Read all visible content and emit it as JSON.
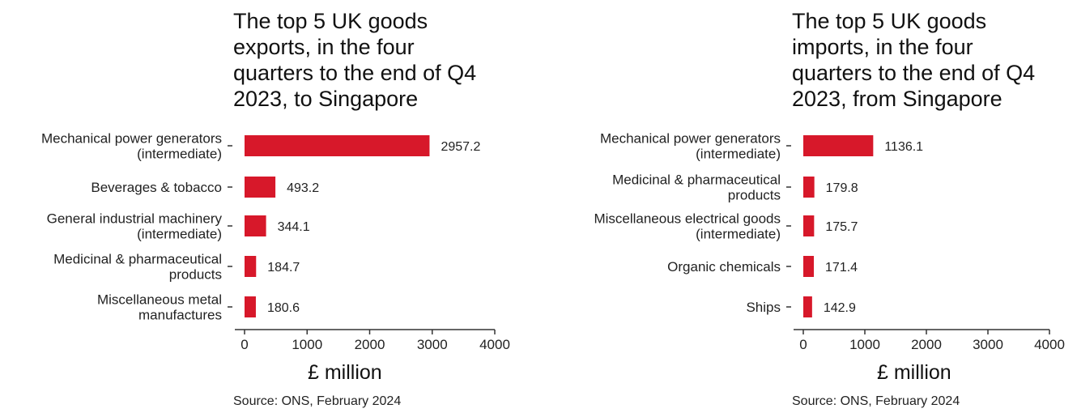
{
  "chart_data": [
    {
      "type": "bar",
      "orientation": "horizontal",
      "title": "The top 5 UK goods\nexports, in the four\nquarters to the end of Q4\n2023, to Singapore",
      "categories": [
        [
          "Mechanical power generators",
          "(intermediate)"
        ],
        [
          "Beverages & tobacco"
        ],
        [
          "General industrial machinery",
          "(intermediate)"
        ],
        [
          "Medicinal & pharmaceutical",
          "products"
        ],
        [
          "Miscellaneous metal",
          "manufactures"
        ]
      ],
      "values": [
        2957.2,
        493.2,
        344.1,
        184.7,
        180.6
      ],
      "value_labels": [
        "2957.2",
        "493.2",
        "344.1",
        "184.7",
        "180.6"
      ],
      "xlabel": "£ million",
      "xlim": [
        0,
        4000
      ],
      "xticks": [
        0,
        1000,
        2000,
        3000,
        4000
      ],
      "bar_color": "#d7182a",
      "grid": false,
      "source": "Source: ONS, February 2024"
    },
    {
      "type": "bar",
      "orientation": "horizontal",
      "title": "The top 5 UK goods\nimports, in the four\nquarters to the end of Q4\n2023, from Singapore",
      "categories": [
        [
          "Mechanical power generators",
          "(intermediate)"
        ],
        [
          "Medicinal & pharmaceutical",
          "products"
        ],
        [
          "Miscellaneous electrical goods",
          "(intermediate)"
        ],
        [
          "Organic chemicals"
        ],
        [
          "Ships"
        ]
      ],
      "values": [
        1136.1,
        179.8,
        175.7,
        171.4,
        142.9
      ],
      "value_labels": [
        "1136.1",
        "179.8",
        "175.7",
        "171.4",
        "142.9"
      ],
      "xlabel": "£ million",
      "xlim": [
        0,
        4000
      ],
      "xticks": [
        0,
        1000,
        2000,
        3000,
        4000
      ],
      "bar_color": "#d7182a",
      "grid": false,
      "source": "Source: ONS, February 2024"
    }
  ]
}
